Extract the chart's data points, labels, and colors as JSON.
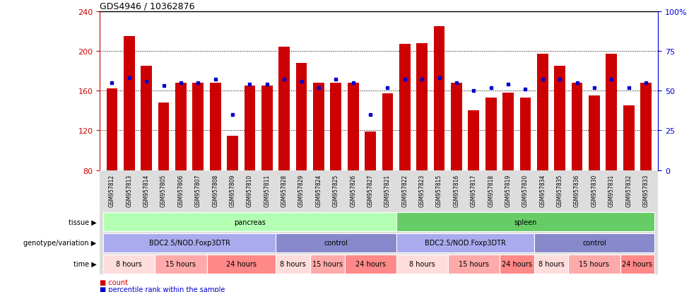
{
  "title": "GDS4946 / 10362876",
  "samples": [
    "GSM957812",
    "GSM957813",
    "GSM957814",
    "GSM957805",
    "GSM957806",
    "GSM957807",
    "GSM957808",
    "GSM957809",
    "GSM957810",
    "GSM957811",
    "GSM957828",
    "GSM957829",
    "GSM957824",
    "GSM957825",
    "GSM957826",
    "GSM957827",
    "GSM957821",
    "GSM957822",
    "GSM957823",
    "GSM957815",
    "GSM957816",
    "GSM957817",
    "GSM957818",
    "GSM957819",
    "GSM957820",
    "GSM957834",
    "GSM957835",
    "GSM957836",
    "GSM957830",
    "GSM957831",
    "GSM957832",
    "GSM957833"
  ],
  "counts": [
    162,
    215,
    185,
    148,
    168,
    168,
    168,
    115,
    165,
    165,
    204,
    188,
    168,
    168,
    168,
    119,
    157,
    207,
    208,
    225,
    168,
    140,
    153,
    158,
    153,
    197,
    185,
    168,
    155,
    197,
    145,
    168
  ],
  "percentile_ranks": [
    55,
    58,
    56,
    53,
    55,
    55,
    57,
    35,
    54,
    54,
    57,
    56,
    52,
    57,
    55,
    35,
    52,
    57,
    57,
    58,
    55,
    50,
    52,
    54,
    51,
    57,
    57,
    55,
    52,
    57,
    52,
    55
  ],
  "ymin": 80,
  "ymax": 240,
  "bar_color": "#cc0000",
  "dot_color": "#0000cc",
  "left_axis_color": "#cc0000",
  "right_axis_color": "#0000cc",
  "tissue_labels": [
    {
      "text": "pancreas",
      "start": 0,
      "end": 16,
      "color": "#b3ffb3"
    },
    {
      "text": "spleen",
      "start": 17,
      "end": 31,
      "color": "#66cc66"
    }
  ],
  "genotype_labels": [
    {
      "text": "BDC2.5/NOD.Foxp3DTR",
      "start": 0,
      "end": 9,
      "color": "#aaaaee"
    },
    {
      "text": "control",
      "start": 10,
      "end": 16,
      "color": "#8888cc"
    },
    {
      "text": "BDC2.5/NOD.Foxp3DTR",
      "start": 17,
      "end": 24,
      "color": "#aaaaee"
    },
    {
      "text": "control",
      "start": 25,
      "end": 31,
      "color": "#8888cc"
    }
  ],
  "time_labels": [
    {
      "text": "8 hours",
      "start": 0,
      "end": 2,
      "color": "#ffdddd"
    },
    {
      "text": "15 hours",
      "start": 3,
      "end": 5,
      "color": "#ffaaaa"
    },
    {
      "text": "24 hours",
      "start": 6,
      "end": 9,
      "color": "#ff8888"
    },
    {
      "text": "8 hours",
      "start": 10,
      "end": 11,
      "color": "#ffdddd"
    },
    {
      "text": "15 hours",
      "start": 12,
      "end": 13,
      "color": "#ffaaaa"
    },
    {
      "text": "24 hours",
      "start": 14,
      "end": 16,
      "color": "#ff8888"
    },
    {
      "text": "8 hours",
      "start": 17,
      "end": 19,
      "color": "#ffdddd"
    },
    {
      "text": "15 hours",
      "start": 20,
      "end": 22,
      "color": "#ffaaaa"
    },
    {
      "text": "24 hours",
      "start": 23,
      "end": 24,
      "color": "#ff8888"
    },
    {
      "text": "8 hours",
      "start": 25,
      "end": 26,
      "color": "#ffdddd"
    },
    {
      "text": "15 hours",
      "start": 27,
      "end": 29,
      "color": "#ffaaaa"
    },
    {
      "text": "24 hours",
      "start": 30,
      "end": 31,
      "color": "#ff8888"
    }
  ],
  "row_labels": [
    "tissue",
    "genotype/variation",
    "time"
  ],
  "legend": [
    "count",
    "percentile rank within the sample"
  ],
  "legend_colors": [
    "#cc0000",
    "#0000cc"
  ]
}
